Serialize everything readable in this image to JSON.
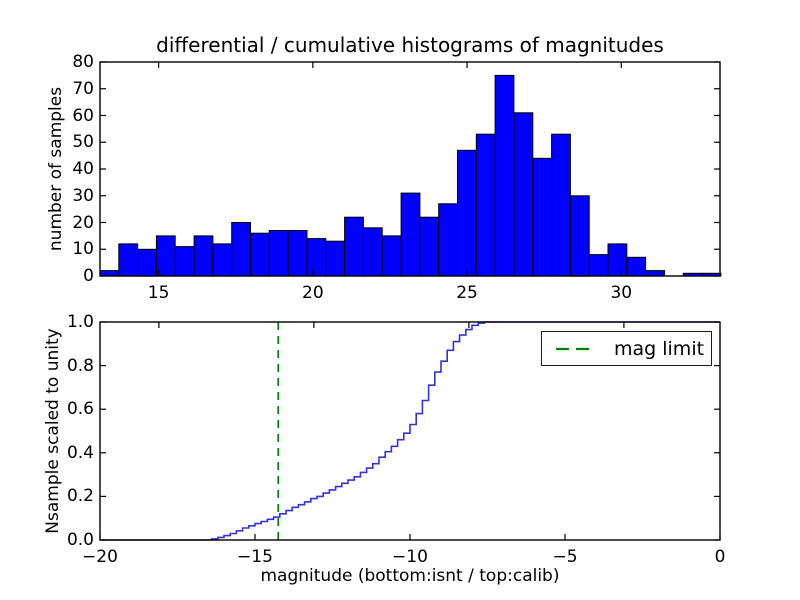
{
  "figure": {
    "background": "#ffffff",
    "bar_fill": "#0000ff",
    "bar_edge": "#000000",
    "curve_color": "#3333dd",
    "vline_color": "#008000",
    "spine_color": "#000000"
  },
  "chart_data": [
    {
      "type": "bar",
      "subtype": "differential-histogram",
      "title": "differential / cumulative histograms of magnitudes",
      "xlabel": "",
      "ylabel": "number of samples",
      "xlim": [
        13.1,
        33.2
      ],
      "ylim": [
        0,
        80
      ],
      "bin_start": 13.1,
      "bin_width": 0.61,
      "counts": [
        2,
        12,
        10,
        15,
        11,
        15,
        12,
        20,
        16,
        17,
        17,
        14,
        13,
        22,
        18,
        15,
        31,
        22,
        27,
        47,
        53,
        75,
        61,
        44,
        53,
        30,
        8,
        12,
        7,
        2,
        0,
        1,
        1
      ],
      "xtick_vals": [
        15,
        20,
        25,
        30
      ],
      "xtick_labels": [
        "15",
        "20",
        "25",
        "30"
      ],
      "ytick_vals": [
        0,
        10,
        20,
        30,
        40,
        50,
        60,
        70,
        80
      ],
      "ytick_labels": [
        "0",
        "10",
        "20",
        "30",
        "40",
        "50",
        "60",
        "70",
        "80"
      ],
      "grid": false,
      "legend": null
    },
    {
      "type": "line",
      "subtype": "cumulative-step",
      "title": "",
      "xlabel": "magnitude (bottom:isnt / top:calib)",
      "ylabel": "Nsample scaled to unity",
      "xlim": [
        -20,
        0
      ],
      "ylim": [
        0.0,
        1.0
      ],
      "xtick_vals": [
        -20,
        -15,
        -10,
        -5,
        0
      ],
      "xtick_labels": [
        "−20",
        "−15",
        "−10",
        "−5",
        "0"
      ],
      "ytick_vals": [
        0.0,
        0.2,
        0.4,
        0.6,
        0.8,
        1.0
      ],
      "ytick_labels": [
        "0.0",
        "0.2",
        "0.4",
        "0.6",
        "0.8",
        "1.0"
      ],
      "top_axis_tick_vals": [
        -18.1,
        -13.1,
        -8.1,
        -3.1
      ],
      "steps": [
        [
          -20,
          0
        ],
        [
          -16.4,
          0.005
        ],
        [
          -16.2,
          0.012
        ],
        [
          -16.0,
          0.02
        ],
        [
          -15.8,
          0.03
        ],
        [
          -15.6,
          0.042
        ],
        [
          -15.4,
          0.055
        ],
        [
          -15.2,
          0.065
        ],
        [
          -15.0,
          0.075
        ],
        [
          -14.8,
          0.085
        ],
        [
          -14.6,
          0.095
        ],
        [
          -14.4,
          0.105
        ],
        [
          -14.2,
          0.12
        ],
        [
          -14.0,
          0.135
        ],
        [
          -13.8,
          0.15
        ],
        [
          -13.6,
          0.162
        ],
        [
          -13.4,
          0.175
        ],
        [
          -13.2,
          0.19
        ],
        [
          -13.0,
          0.2
        ],
        [
          -12.8,
          0.215
        ],
        [
          -12.6,
          0.23
        ],
        [
          -12.4,
          0.245
        ],
        [
          -12.2,
          0.26
        ],
        [
          -12.0,
          0.275
        ],
        [
          -11.8,
          0.29
        ],
        [
          -11.6,
          0.31
        ],
        [
          -11.4,
          0.33
        ],
        [
          -11.2,
          0.35
        ],
        [
          -11.0,
          0.38
        ],
        [
          -10.8,
          0.405
        ],
        [
          -10.6,
          0.43
        ],
        [
          -10.4,
          0.46
        ],
        [
          -10.2,
          0.49
        ],
        [
          -10.0,
          0.53
        ],
        [
          -9.8,
          0.58
        ],
        [
          -9.6,
          0.64
        ],
        [
          -9.4,
          0.71
        ],
        [
          -9.2,
          0.77
        ],
        [
          -9.0,
          0.82
        ],
        [
          -8.8,
          0.87
        ],
        [
          -8.6,
          0.91
        ],
        [
          -8.4,
          0.94
        ],
        [
          -8.2,
          0.965
        ],
        [
          -8.0,
          0.985
        ],
        [
          -7.8,
          0.995
        ],
        [
          -7.6,
          1.0
        ],
        [
          0,
          1.0
        ]
      ],
      "vline": {
        "x": -14.25,
        "color": "#008000",
        "style": "dashed"
      },
      "legend": {
        "location": "upper right",
        "entries": [
          {
            "label": "mag limit",
            "color": "#008000",
            "style": "dashed"
          }
        ]
      },
      "grid": false
    }
  ]
}
